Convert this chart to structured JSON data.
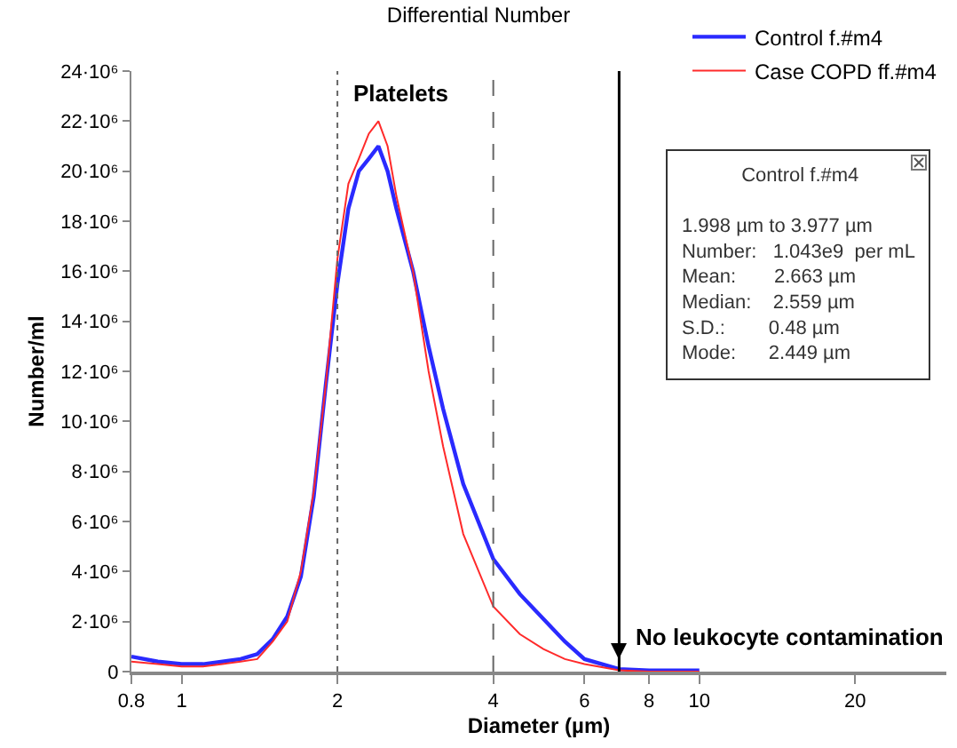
{
  "chart_data": {
    "type": "line",
    "title": "Differential Number",
    "xlabel": "Diameter (µm)",
    "ylabel": "Number/ml",
    "log": "x",
    "x": [
      0.8,
      0.9,
      1.0,
      1.1,
      1.2,
      1.3,
      1.4,
      1.5,
      1.6,
      1.7,
      1.8,
      1.9,
      2.0,
      2.1,
      2.2,
      2.3,
      2.4,
      2.5,
      2.6,
      2.8,
      3.0,
      3.2,
      3.5,
      4.0,
      4.5,
      5.0,
      5.5,
      6.0,
      7.0,
      8.0,
      10.0
    ],
    "series": [
      {
        "name": "Control f.#m4",
        "color": "#2a2aff",
        "values": [
          600000.0,
          400000.0,
          300000.0,
          300000.0,
          400000.0,
          500000.0,
          700000.0,
          1300000.0,
          2200000.0,
          3800000.0,
          7000000.0,
          11500000.0,
          15500000.0,
          18500000.0,
          20000000.0,
          20500000.0,
          21000000.0,
          20000000.0,
          18500000.0,
          16000000.0,
          13000000.0,
          10500000.0,
          7500000.0,
          4500000.0,
          3100000.0,
          2100000.0,
          1200000.0,
          500000.0,
          100000.0,
          50000.0,
          50000.0
        ]
      },
      {
        "name": "Case COPD ff.#m4",
        "color": "#ff2a2a",
        "values": [
          400000.0,
          300000.0,
          200000.0,
          200000.0,
          300000.0,
          400000.0,
          500000.0,
          1200000.0,
          2000000.0,
          4000000.0,
          7200000.0,
          11500000.0,
          16500000.0,
          19500000.0,
          20500000.0,
          21500000.0,
          22000000.0,
          21000000.0,
          19000000.0,
          16000000.0,
          12000000.0,
          9000000.0,
          5500000.0,
          2600000.0,
          1500000.0,
          900000.0,
          500000.0,
          300000.0,
          50000.0,
          0,
          0
        ]
      }
    ],
    "xlim": [
      0.8,
      30
    ],
    "xticks": [
      0.8,
      1,
      2,
      4,
      6,
      8,
      10,
      20
    ],
    "ylim": [
      0,
      24000000
    ],
    "yticks": [
      {
        "value": 0,
        "label": "0"
      },
      {
        "value": 2000000,
        "label": "2·10⁶"
      },
      {
        "value": 4000000,
        "label": "4·10⁶"
      },
      {
        "value": 6000000,
        "label": "6·10⁶"
      },
      {
        "value": 8000000,
        "label": "8·10⁶"
      },
      {
        "value": 10000000,
        "label": "10·10⁶"
      },
      {
        "value": 12000000,
        "label": "12·10⁶"
      },
      {
        "value": 14000000,
        "label": "14·10⁶"
      },
      {
        "value": 16000000,
        "label": "16·10⁶"
      },
      {
        "value": 18000000,
        "label": "18·10⁶"
      },
      {
        "value": 20000000,
        "label": "20·10⁶"
      },
      {
        "value": 22000000,
        "label": "22·10⁶"
      },
      {
        "value": 24000000,
        "label": "24·10⁶"
      }
    ],
    "ref_lines": [
      {
        "axis": "x",
        "value": 2,
        "color": "#666666",
        "line_style": "dotted"
      },
      {
        "axis": "x",
        "value": 4,
        "color": "#666666",
        "line_style": "dashed"
      },
      {
        "axis": "x",
        "value": 7,
        "color": "#000000",
        "line_style": "solid"
      }
    ],
    "annotations": [
      "Platelets",
      "No leukocyte contamination",
      "Control f.#m4",
      "1.998 µm to 3.977 µm",
      "Number:   1.043e9  per mL",
      "Mean:       2.663 µm",
      "Median:    2.559 µm",
      "S.D.:        0.48 µm",
      "Mode:      2.449 µm"
    ],
    "grid": false,
    "legend": "top right",
    "marker": "none",
    "line_style": "solid"
  }
}
